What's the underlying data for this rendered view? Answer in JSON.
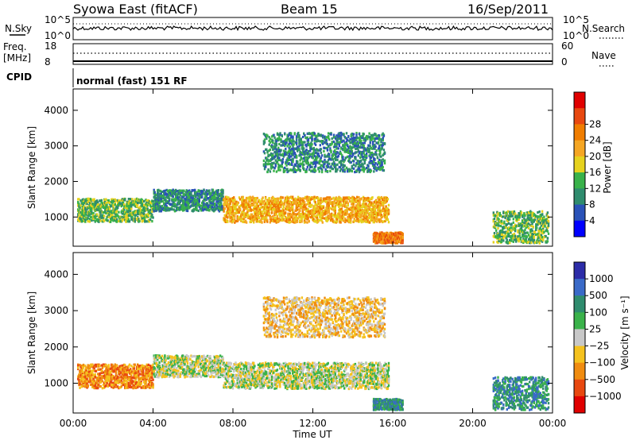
{
  "header": {
    "title": "Syowa East (fitACF)",
    "beam": "Beam 15",
    "date": "16/Sep/2011"
  },
  "info_panels": {
    "nsky_label": "N.Sky",
    "nsky_ticks": [
      "10^5",
      "10^0"
    ],
    "nsearch_label": "N.Search",
    "nsearch_ticks": [
      "10^5",
      "10^0"
    ],
    "freq_label": "Freq.",
    "freq_unit": "[MHz]",
    "freq_ticks": [
      "18",
      "8"
    ],
    "nave_label": "Nave",
    "nave_ticks": [
      "60",
      "0"
    ],
    "cpid_label": "CPID",
    "cpid_text": "normal (fast) 151 RF"
  },
  "chart_data": [
    {
      "type": "heatmap",
      "name": "power-panel",
      "ylabel": "Slant Range [km]",
      "xlabel": "",
      "yticks": [
        "1000",
        "2000",
        "3000",
        "4000"
      ],
      "ylim": [
        180,
        4600
      ],
      "colorbar_label": "Power [dB]",
      "colorbar_ticks": [
        "4",
        "8",
        "12",
        "16",
        "20",
        "24",
        "28"
      ],
      "colors": [
        "#0000ff",
        "#2a52b8",
        "#2f8c6e",
        "#39b24a",
        "#e6d21e",
        "#f5a623",
        "#f07d00",
        "#e84810",
        "#e00000"
      ],
      "echo_regions": [
        {
          "t0": 0.2,
          "t1": 4.0,
          "r0": 900,
          "r1": 1550,
          "level": 3
        },
        {
          "t0": 4.0,
          "t1": 7.5,
          "r0": 1200,
          "r1": 1800,
          "level": 2
        },
        {
          "t0": 7.5,
          "t1": 15.8,
          "r0": 880,
          "r1": 1600,
          "level": 5
        },
        {
          "t0": 9.5,
          "t1": 15.6,
          "r0": 2300,
          "r1": 3400,
          "level": 2
        },
        {
          "t0": 15.0,
          "t1": 16.5,
          "r0": 300,
          "r1": 600,
          "level": 6
        },
        {
          "t0": 21.0,
          "t1": 23.8,
          "r0": 300,
          "r1": 1200,
          "level": 3
        }
      ]
    },
    {
      "type": "heatmap",
      "name": "velocity-panel",
      "ylabel": "Slant Range [km]",
      "xlabel": "Time UT",
      "yticks": [
        "1000",
        "2000",
        "3000",
        "4000"
      ],
      "ylim": [
        180,
        4600
      ],
      "colorbar_label": "Velocity [m s⁻¹]",
      "colorbar_ticks": [
        "1000",
        "500",
        "100",
        "25",
        "−25",
        "−100",
        "−500",
        "−1000"
      ],
      "colors": [
        "#2c2ca8",
        "#3a6ac8",
        "#2f8c6e",
        "#3ab24a",
        "#c8c8c8",
        "#f5c21e",
        "#f08c10",
        "#e84810",
        "#e00000"
      ],
      "echo_regions": [
        {
          "t0": 0.2,
          "t1": 4.0,
          "r0": 900,
          "r1": 1550,
          "level": 6
        },
        {
          "t0": 4.0,
          "t1": 7.5,
          "r0": 1200,
          "r1": 1800,
          "level": 4
        },
        {
          "t0": 7.5,
          "t1": 15.8,
          "r0": 880,
          "r1": 1600,
          "level": 4
        },
        {
          "t0": 9.5,
          "t1": 15.6,
          "r0": 2300,
          "r1": 3400,
          "level": 5
        },
        {
          "t0": 15.0,
          "t1": 16.5,
          "r0": 300,
          "r1": 600,
          "level": 2
        },
        {
          "t0": 21.0,
          "t1": 23.8,
          "r0": 300,
          "r1": 1200,
          "level": 2
        }
      ]
    }
  ],
  "time_axis": {
    "ticks": [
      "00:00",
      "04:00",
      "08:00",
      "12:00",
      "16:00",
      "20:00",
      "00:00"
    ],
    "label": "Time UT"
  }
}
